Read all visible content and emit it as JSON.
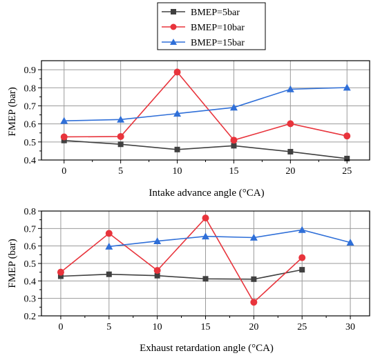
{
  "legend": {
    "placement": "top-center",
    "entries": [
      {
        "label": "BMEP=5bar",
        "color": "#404040",
        "marker": "square"
      },
      {
        "label": "BMEP=10bar",
        "color": "#e8343c",
        "marker": "circle"
      },
      {
        "label": "BMEP=15bar",
        "color": "#2f6fd8",
        "marker": "triangle"
      }
    ]
  },
  "chart_data": [
    {
      "type": "line",
      "title": "",
      "xlabel": "Intake advance angle (°CA)",
      "ylabel": "FMEP (bar)",
      "xlim": [
        -2,
        27
      ],
      "ylim": [
        0.4,
        0.95
      ],
      "xticks": [
        0,
        5,
        10,
        15,
        20,
        25
      ],
      "yticks": [
        0.4,
        0.5,
        0.6,
        0.7,
        0.8,
        0.9
      ],
      "grid": true,
      "series": [
        {
          "name": "BMEP=5bar",
          "color": "#404040",
          "marker": "square",
          "x": [
            0,
            5,
            10,
            15,
            20,
            25
          ],
          "y": [
            0.508,
            0.487,
            0.458,
            0.479,
            0.446,
            0.408
          ]
        },
        {
          "name": "BMEP=10bar",
          "color": "#e8343c",
          "marker": "circle",
          "x": [
            0,
            5,
            10,
            15,
            20,
            25
          ],
          "y": [
            0.528,
            0.53,
            0.887,
            0.51,
            0.601,
            0.533
          ]
        },
        {
          "name": "BMEP=15bar",
          "color": "#2f6fd8",
          "marker": "triangle",
          "x": [
            0,
            5,
            10,
            15,
            20,
            25
          ],
          "y": [
            0.617,
            0.624,
            0.657,
            0.691,
            0.792,
            0.801
          ]
        }
      ]
    },
    {
      "type": "line",
      "title": "",
      "xlabel": "Exhaust retardation angle (°CA)",
      "ylabel": "FMEP (bar)",
      "xlim": [
        -2,
        32
      ],
      "ylim": [
        0.2,
        0.8
      ],
      "xticks": [
        0,
        5,
        10,
        15,
        20,
        25,
        30
      ],
      "yticks": [
        0.2,
        0.3,
        0.4,
        0.5,
        0.6,
        0.7,
        0.8
      ],
      "grid": true,
      "series": [
        {
          "name": "BMEP=5bar",
          "color": "#404040",
          "marker": "square",
          "x": [
            0,
            5,
            10,
            15,
            20,
            25
          ],
          "y": [
            0.427,
            0.438,
            0.43,
            0.412,
            0.41,
            0.464
          ]
        },
        {
          "name": "BMEP=10bar",
          "color": "#e8343c",
          "marker": "circle",
          "x": [
            0,
            5,
            10,
            15,
            20,
            25
          ],
          "y": [
            0.45,
            0.672,
            0.46,
            0.76,
            0.278,
            0.533
          ]
        },
        {
          "name": "BMEP=15bar",
          "color": "#2f6fd8",
          "marker": "triangle",
          "x": [
            5,
            10,
            15,
            20,
            25,
            30
          ],
          "y": [
            0.597,
            0.628,
            0.655,
            0.648,
            0.692,
            0.62
          ]
        }
      ]
    }
  ]
}
